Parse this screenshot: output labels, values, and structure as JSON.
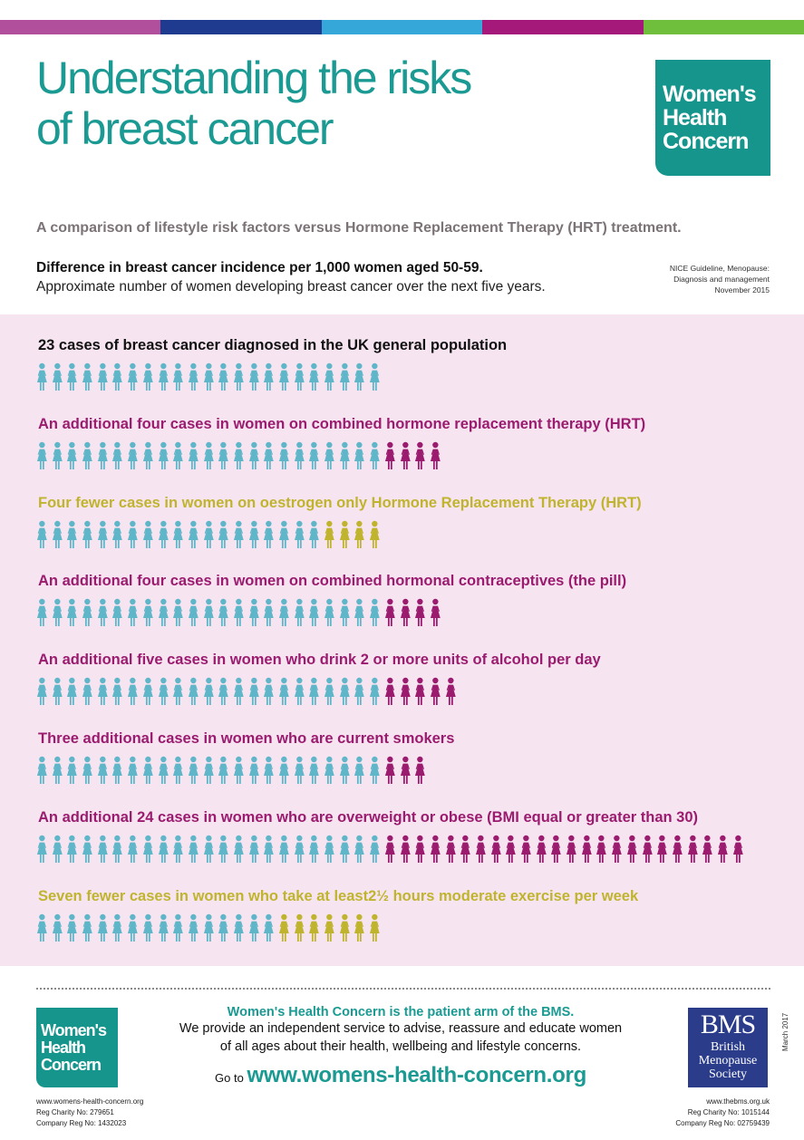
{
  "colors": {
    "teal": "#1a9a92",
    "figure_base": "#5fb6c9",
    "magenta": "#9b1b6f",
    "olive": "#c0b42e",
    "pink_bg": "#f6e5f1",
    "stripe": [
      "#b24f9c",
      "#1f3b8f",
      "#36a7d9",
      "#a4197a",
      "#6fbf3c"
    ]
  },
  "header": {
    "title_line1": "Understanding the risks",
    "title_line2": "of breast cancer",
    "logo_lines": [
      "Women's",
      "Health",
      "Concern"
    ],
    "subtitle": "A comparison of lifestyle risk factors versus Hormone Replacement Therapy (HRT) treatment.",
    "difference_heading": "Difference in breast cancer incidence per 1,000 women aged 50-59.",
    "difference_sub": "Approximate number of women developing breast cancer over the next five years.",
    "nice_ref_lines": [
      "NICE Guideline, Menopause:",
      "Diagnosis and management",
      "November 2015"
    ]
  },
  "rows": [
    {
      "label": "23 cases of breast cancer diagnosed in the UK general population",
      "label_color": "#111111",
      "base": 23,
      "extra": 0,
      "extra_type": "none"
    },
    {
      "label": "An additional four cases in women on combined hormone replacement therapy (HRT)",
      "label_color": "#9b1b6f",
      "base": 23,
      "extra": 4,
      "extra_type": "magenta"
    },
    {
      "label": "Four fewer  cases in women on oestrogen only Hormone Replacement Therapy (HRT)",
      "label_color": "#c0b42e",
      "base": 19,
      "extra": 4,
      "extra_type": "olive"
    },
    {
      "label": "An additional four cases in women on combined hormonal contraceptives (the pill)",
      "label_color": "#9b1b6f",
      "base": 23,
      "extra": 4,
      "extra_type": "magenta"
    },
    {
      "label": "An additional five cases in women who drink 2 or more units of alcohol per day",
      "label_color": "#9b1b6f",
      "base": 23,
      "extra": 5,
      "extra_type": "magenta"
    },
    {
      "label": "Three additional cases in women who are current smokers",
      "label_color": "#9b1b6f",
      "base": 23,
      "extra": 3,
      "extra_type": "magenta"
    },
    {
      "label": "An additional 24 cases in women who are overweight or obese (BMI equal or greater than 30)",
      "label_color": "#9b1b6f",
      "base": 23,
      "extra": 24,
      "extra_type": "magenta"
    },
    {
      "label": "Seven fewer cases in women who take at least2½ hours moderate exercise per week",
      "label_color": "#c0b42e",
      "base": 16,
      "extra": 7,
      "extra_type": "olive"
    }
  ],
  "footer": {
    "tagline": "Women's Health Concern is the patient arm of the BMS.",
    "text_line1": "We provide an independent service to advise, reassure and educate women",
    "text_line2": "of all ages about their health, wellbeing and lifestyle concerns.",
    "goto_prefix": "Go to",
    "url": "www.womens-health-concern.org",
    "left_small": [
      "www.womens-health-concern.org",
      "Reg Charity No: 279651",
      "Company Reg No: 1432023"
    ],
    "bms_mark": "BMS",
    "bms_name_lines": [
      "British",
      "Menopause",
      "Society"
    ],
    "right_small": [
      "www.thebms.org.uk",
      "Reg Charity No: 1015144",
      "Company Reg No: 02759439"
    ],
    "date": "March 2017"
  }
}
